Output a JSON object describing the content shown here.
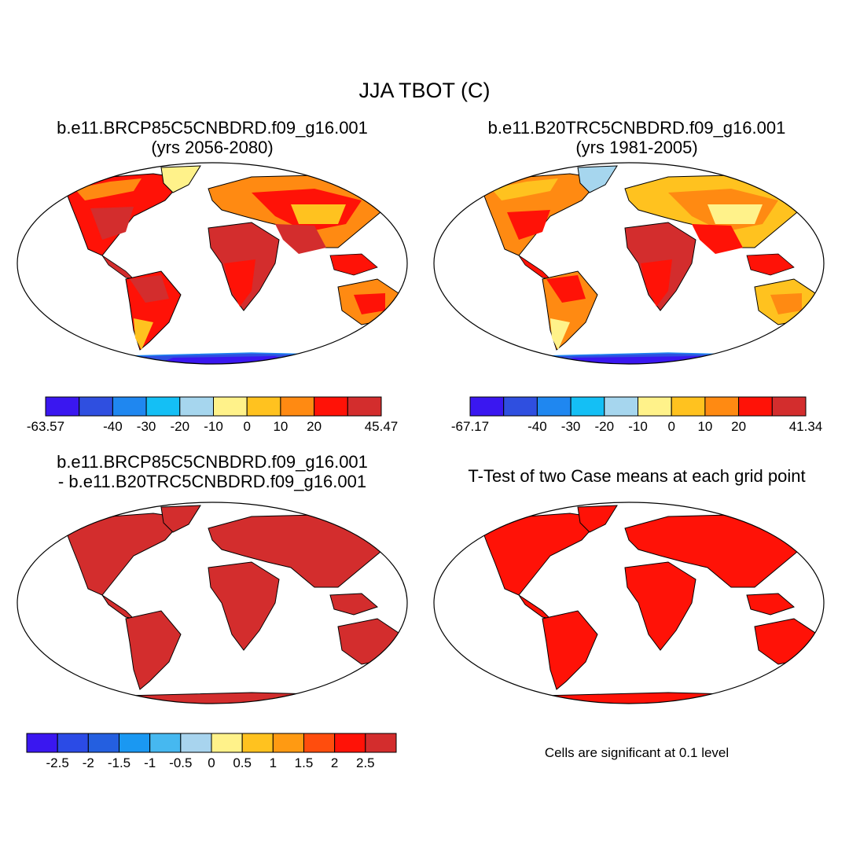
{
  "title": "JJA TBOT (C)",
  "panels": [
    {
      "title_line1": "b.e11.BRCP85C5CNBDRD.f09_g16.001",
      "title_line2": "(yrs 2056-2080)",
      "map": "panel-future",
      "colorbar": {
        "colors": [
          "#3a17f0",
          "#2f4fe0",
          "#1f87f0",
          "#14bff5",
          "#a6d6ee",
          "#fff28a",
          "#ffc21f",
          "#ff8a12",
          "#ff1207",
          "#d32d2d"
        ],
        "labels": [
          "-63.57",
          "-40",
          "-30",
          "-20",
          "-10",
          "0",
          "10",
          "20",
          "45.47"
        ]
      }
    },
    {
      "title_line1": "b.e11.B20TRC5CNBDRD.f09_g16.001",
      "title_line2": "(yrs 1981-2005)",
      "map": "panel-historical",
      "colorbar": {
        "colors": [
          "#3a17f0",
          "#2f4fe0",
          "#1f87f0",
          "#14bff5",
          "#a6d6ee",
          "#fff28a",
          "#ffc21f",
          "#ff8a12",
          "#ff1207",
          "#d32d2d"
        ],
        "labels": [
          "-67.17",
          "-40",
          "-30",
          "-20",
          "-10",
          "0",
          "10",
          "20",
          "41.34"
        ]
      }
    },
    {
      "title_line1": "b.e11.BRCP85C5CNBDRD.f09_g16.001",
      "title_line2": "- b.e11.B20TRC5CNBDRD.f09_g16.001",
      "map": "panel-difference",
      "colorbar": {
        "colors": [
          "#3a17f0",
          "#2b4be6",
          "#245fe0",
          "#1a98f2",
          "#46b8f0",
          "#a8d4ee",
          "#fff28a",
          "#ffc21f",
          "#ff9a12",
          "#ff4d0d",
          "#ff1207",
          "#d32d2d"
        ],
        "labels": [
          "-2.5",
          "-2",
          "-1.5",
          "-1",
          "-0.5",
          "0",
          "0.5",
          "1",
          "1.5",
          "2",
          "2.5"
        ]
      }
    },
    {
      "title_line1": "T-Test of two Case means at each grid point",
      "map": "panel-ttest",
      "note": "Cells are significant at 0.1 level"
    }
  ]
}
